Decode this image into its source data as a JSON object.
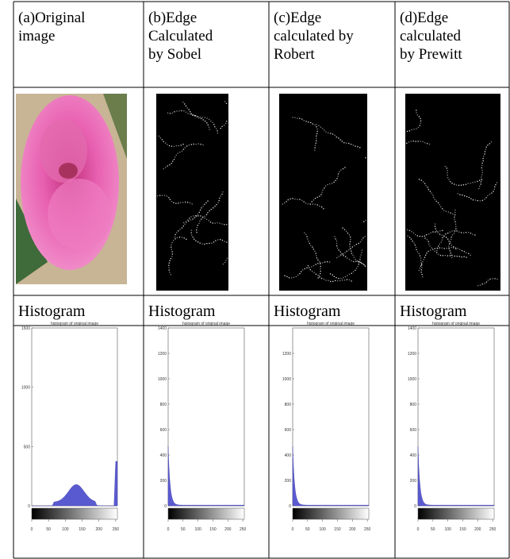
{
  "table": {
    "header": [
      [
        "(a)Original",
        "image"
      ],
      [
        "(b)Edge",
        "Calculated",
        "by Sobel"
      ],
      [
        "(c)Edge",
        "calculated by",
        "Robert"
      ],
      [
        "(d)Edge",
        "calculated",
        "by Prewitt"
      ]
    ],
    "row3": [
      "Histogram",
      "Histogram",
      "Histogram",
      "Histogram"
    ]
  },
  "histograms": [
    {
      "title": "histogram of original image",
      "ylim": [
        0,
        1500
      ],
      "yticks": [
        0,
        500,
        1000,
        1500
      ],
      "xlim": [
        0,
        255
      ],
      "xticks": [
        0,
        50,
        100,
        150,
        200,
        250
      ]
    },
    {
      "title": "histogram of original image",
      "ylim": [
        0,
        1400
      ],
      "yticks": [
        0,
        200,
        400,
        600,
        800,
        1000,
        1200,
        1400
      ],
      "xlim": [
        0,
        255
      ],
      "xticks": [
        0,
        50,
        100,
        150,
        200,
        250
      ]
    },
    {
      "title": "histogram of original image",
      "ylim": [
        0,
        1400
      ],
      "yticks": [
        0,
        200,
        400,
        600,
        800,
        1000,
        1200
      ],
      "xlim": [
        0,
        255
      ],
      "xticks": [
        0,
        50,
        100,
        150,
        200,
        250
      ]
    },
    {
      "title": "histogram of original image",
      "ylim": [
        0,
        1400
      ],
      "yticks": [
        0,
        200,
        400,
        600,
        800,
        1000,
        1200,
        1400
      ],
      "xlim": [
        0,
        255
      ],
      "xticks": [
        0,
        50,
        100,
        150,
        200,
        250
      ]
    }
  ]
}
